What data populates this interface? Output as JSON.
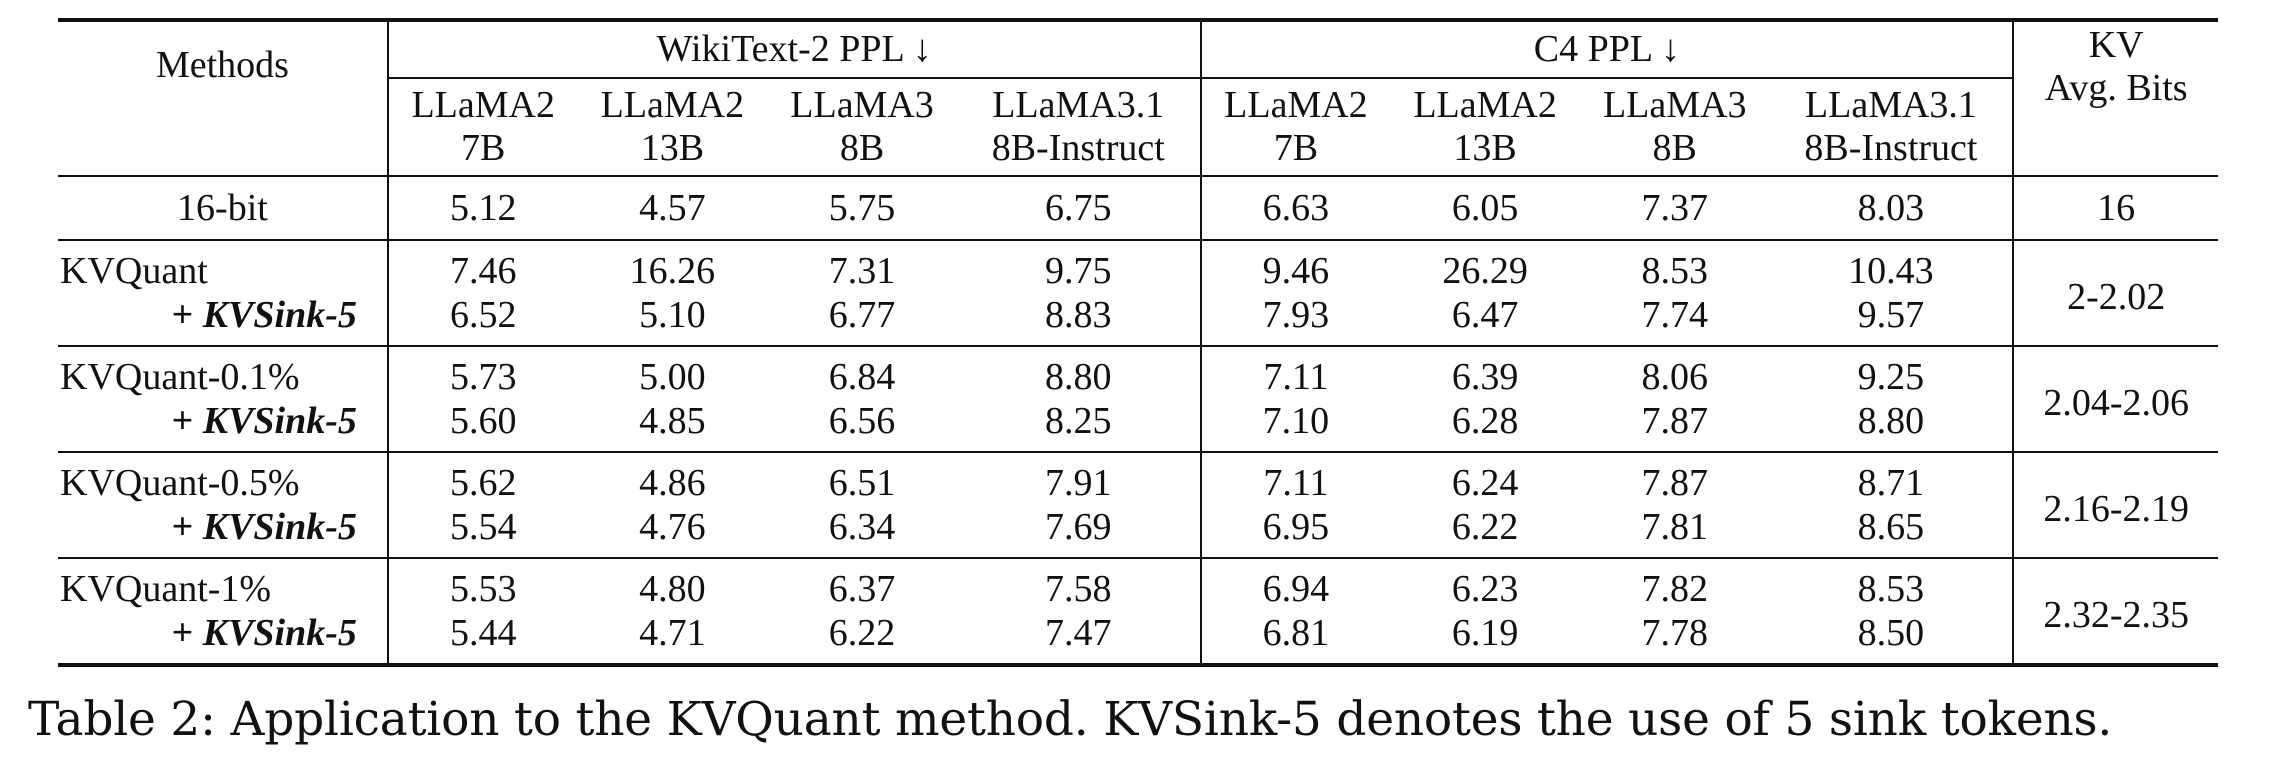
{
  "table": {
    "header": {
      "methods": "Methods",
      "group_wiki": "WikiText-2 PPL ↓",
      "group_c4": "C4 PPL ↓",
      "kv_line1": "KV",
      "kv_line2": "Avg. Bits",
      "models": [
        {
          "line1": "LLaMA2",
          "line2": "7B"
        },
        {
          "line1": "LLaMA2",
          "line2": "13B"
        },
        {
          "line1": "LLaMA3",
          "line2": "8B"
        },
        {
          "line1": "LLaMA3.1",
          "line2": "8B-Instruct"
        },
        {
          "line1": "LLaMA2",
          "line2": "7B"
        },
        {
          "line1": "LLaMA2",
          "line2": "13B"
        },
        {
          "line1": "LLaMA3",
          "line2": "8B"
        },
        {
          "line1": "LLaMA3.1",
          "line2": "8B-Instruct"
        }
      ]
    },
    "baseline": {
      "method": "16-bit",
      "values": [
        "5.12",
        "4.57",
        "5.75",
        "6.75",
        "6.63",
        "6.05",
        "7.37",
        "8.03"
      ],
      "kv": "16"
    },
    "groups": [
      {
        "base_method": "KVQuant",
        "base_values": [
          "7.46",
          "16.26",
          "7.31",
          "9.75",
          "9.46",
          "26.29",
          "8.53",
          "10.43"
        ],
        "sink_plus": "+",
        "sink_method": "KVSink-5",
        "sink_values": [
          "6.52",
          "5.10",
          "6.77",
          "8.83",
          "7.93",
          "6.47",
          "7.74",
          "9.57"
        ],
        "kv": "2-2.02"
      },
      {
        "base_method": "KVQuant-0.1%",
        "base_values": [
          "5.73",
          "5.00",
          "6.84",
          "8.80",
          "7.11",
          "6.39",
          "8.06",
          "9.25"
        ],
        "sink_plus": "+",
        "sink_method": "KVSink-5",
        "sink_values": [
          "5.60",
          "4.85",
          "6.56",
          "8.25",
          "7.10",
          "6.28",
          "7.87",
          "8.80"
        ],
        "kv": "2.04-2.06"
      },
      {
        "base_method": "KVQuant-0.5%",
        "base_values": [
          "5.62",
          "4.86",
          "6.51",
          "7.91",
          "7.11",
          "6.24",
          "7.87",
          "8.71"
        ],
        "sink_plus": "+",
        "sink_method": "KVSink-5",
        "sink_values": [
          "5.54",
          "4.76",
          "6.34",
          "7.69",
          "6.95",
          "6.22",
          "7.81",
          "8.65"
        ],
        "kv": "2.16-2.19"
      },
      {
        "base_method": "KVQuant-1%",
        "base_values": [
          "5.53",
          "4.80",
          "6.37",
          "7.58",
          "6.94",
          "6.23",
          "7.82",
          "8.53"
        ],
        "sink_plus": "+",
        "sink_method": "KVSink-5",
        "sink_values": [
          "5.44",
          "4.71",
          "6.22",
          "7.47",
          "6.81",
          "6.19",
          "7.78",
          "8.50"
        ],
        "kv": "2.32-2.35"
      }
    ]
  },
  "caption": "Table 2: Application to the KVQuant method. KVSink-5 denotes the use of 5 sink tokens."
}
